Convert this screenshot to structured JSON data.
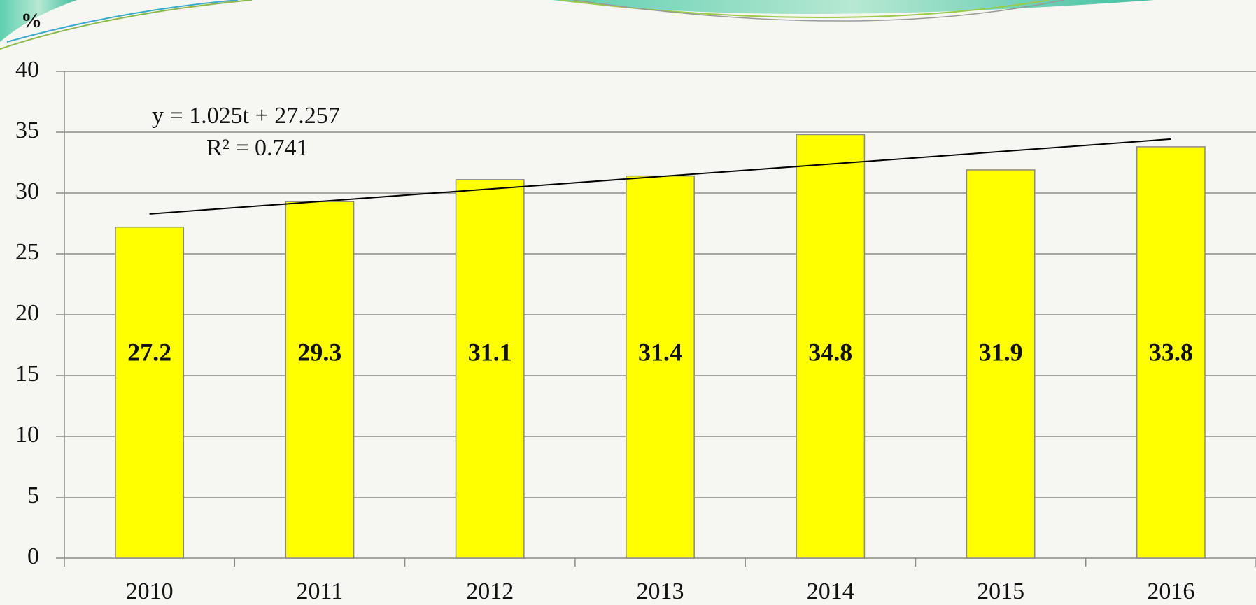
{
  "chart_data": {
    "type": "bar",
    "y_label": "%",
    "categories": [
      "2010",
      "2011",
      "2012",
      "2013",
      "2014",
      "2015",
      "2016"
    ],
    "values": [
      27.2,
      29.3,
      31.1,
      31.4,
      34.8,
      31.9,
      33.8
    ],
    "color": "#ffff00",
    "ylim": [
      0,
      40
    ],
    "yticks": [
      0,
      5,
      10,
      15,
      20,
      25,
      30,
      35,
      40
    ],
    "grid": true,
    "trendline": {
      "equation": "y = 1.025t + 27.257",
      "r_squared": "R² = 0.741",
      "slope": 1.025,
      "intercept": 27.257
    }
  }
}
